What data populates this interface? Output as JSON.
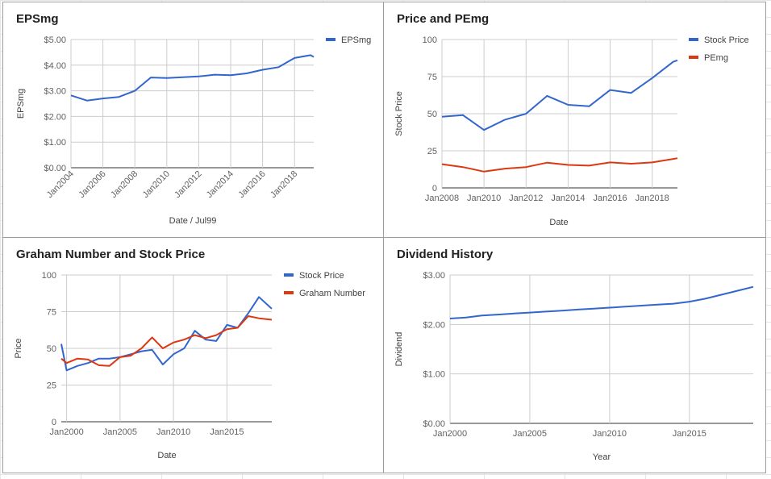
{
  "chart_data": [
    {
      "id": "eps",
      "type": "line",
      "title": "EPSmg",
      "xlabel": "Date / Jul99",
      "ylabel": "EPSmg",
      "x_ticks": [
        "Jan2004",
        "Jan2006",
        "Jan2008",
        "Jan2010",
        "Jan2012",
        "Jan2014",
        "Jan2016",
        "Jan2018"
      ],
      "y_ticks": [
        "$0.00",
        "$1.00",
        "$2.00",
        "$3.00",
        "$4.00",
        "$5.00"
      ],
      "ylim": [
        0,
        5
      ],
      "xlim": [
        2004,
        2019.2
      ],
      "legend_position": "right",
      "colors": [
        "#3366cc"
      ],
      "series": [
        {
          "name": "EPSmg",
          "x": [
            2004,
            2005,
            2006,
            2007,
            2008,
            2009,
            2010,
            2011,
            2012,
            2013,
            2014,
            2015,
            2016,
            2017,
            2018,
            2019,
            2019.2
          ],
          "values": [
            2.82,
            2.62,
            2.7,
            2.76,
            3.0,
            3.52,
            3.5,
            3.53,
            3.56,
            3.63,
            3.61,
            3.68,
            3.82,
            3.92,
            4.28,
            4.39,
            4.32
          ]
        }
      ]
    },
    {
      "id": "price_pe",
      "type": "line",
      "title": "Price and PEmg",
      "xlabel": "Date",
      "ylabel": "Stock Price",
      "x_ticks": [
        "Jan2008",
        "Jan2010",
        "Jan2012",
        "Jan2014",
        "Jan2016",
        "Jan2018"
      ],
      "y_ticks": [
        "0",
        "25",
        "50",
        "75",
        "100"
      ],
      "ylim": [
        0,
        100
      ],
      "xlim": [
        2008,
        2019.2
      ],
      "legend_position": "right",
      "colors": [
        "#3366cc",
        "#dc3912"
      ],
      "series": [
        {
          "name": "Stock Price",
          "x": [
            2008,
            2009,
            2010,
            2011,
            2012,
            2013,
            2014,
            2015,
            2016,
            2017,
            2018,
            2019,
            2019.2
          ],
          "values": [
            48,
            49,
            39,
            46,
            50,
            62,
            56,
            55,
            66,
            64,
            74,
            85,
            86
          ]
        },
        {
          "name": "PEmg",
          "x": [
            2008,
            2009,
            2010,
            2011,
            2012,
            2013,
            2014,
            2015,
            2016,
            2017,
            2018,
            2019,
            2019.2
          ],
          "values": [
            16,
            14,
            11,
            13,
            14,
            17,
            15.5,
            15,
            17.2,
            16.3,
            17.2,
            19.5,
            20
          ]
        }
      ]
    },
    {
      "id": "graham",
      "type": "line",
      "title": "Graham Number and Stock Price",
      "xlabel": "Date",
      "ylabel": "Price",
      "x_ticks": [
        "Jan2000",
        "Jan2005",
        "Jan2010",
        "Jan2015"
      ],
      "y_ticks": [
        "0",
        "25",
        "50",
        "75",
        "100"
      ],
      "ylim": [
        0,
        100
      ],
      "xlim": [
        1999.5,
        2019.2
      ],
      "legend_position": "right",
      "colors": [
        "#3366cc",
        "#dc3912"
      ],
      "series": [
        {
          "name": "Stock Price",
          "x": [
            1999.5,
            2000,
            2001,
            2002,
            2003,
            2004,
            2005,
            2006,
            2007,
            2008,
            2009,
            2010,
            2011,
            2012,
            2013,
            2014,
            2015,
            2016,
            2017,
            2018,
            2019.2
          ],
          "values": [
            53,
            35,
            38,
            40,
            43,
            43,
            44,
            46,
            48,
            49,
            39,
            46,
            50,
            62,
            56,
            55,
            66,
            64,
            74,
            85,
            77
          ]
        },
        {
          "name": "Graham Number",
          "x": [
            1999.5,
            2000,
            2001,
            2002,
            2003,
            2004,
            2005,
            2006,
            2007,
            2008,
            2009,
            2010,
            2011,
            2012,
            2013,
            2014,
            2015,
            2016,
            2017,
            2018,
            2019.2
          ],
          "values": [
            43,
            40,
            43,
            42.5,
            38.5,
            38,
            44,
            45,
            50,
            57.5,
            50,
            54,
            56,
            59,
            57,
            59,
            63,
            64,
            72,
            70.5,
            69.5
          ]
        }
      ]
    },
    {
      "id": "dividend",
      "type": "line",
      "title": "Dividend History",
      "xlabel": "Year",
      "ylabel": "Dividend",
      "x_ticks": [
        "Jan2000",
        "Jan2005",
        "Jan2010",
        "Jan2015"
      ],
      "y_ticks": [
        "$0.00",
        "$1.00",
        "$2.00",
        "$3.00"
      ],
      "ylim": [
        0,
        3
      ],
      "xlim": [
        2000,
        2019
      ],
      "legend_position": "none",
      "colors": [
        "#3366cc"
      ],
      "series": [
        {
          "name": "",
          "x": [
            2000,
            2001,
            2002,
            2003,
            2004,
            2005,
            2006,
            2007,
            2008,
            2009,
            2010,
            2011,
            2012,
            2013,
            2014,
            2015,
            2016,
            2017,
            2018,
            2019
          ],
          "values": [
            2.12,
            2.14,
            2.18,
            2.2,
            2.22,
            2.24,
            2.26,
            2.28,
            2.3,
            2.32,
            2.34,
            2.36,
            2.38,
            2.4,
            2.42,
            2.46,
            2.52,
            2.6,
            2.68,
            2.76
          ]
        }
      ]
    }
  ]
}
